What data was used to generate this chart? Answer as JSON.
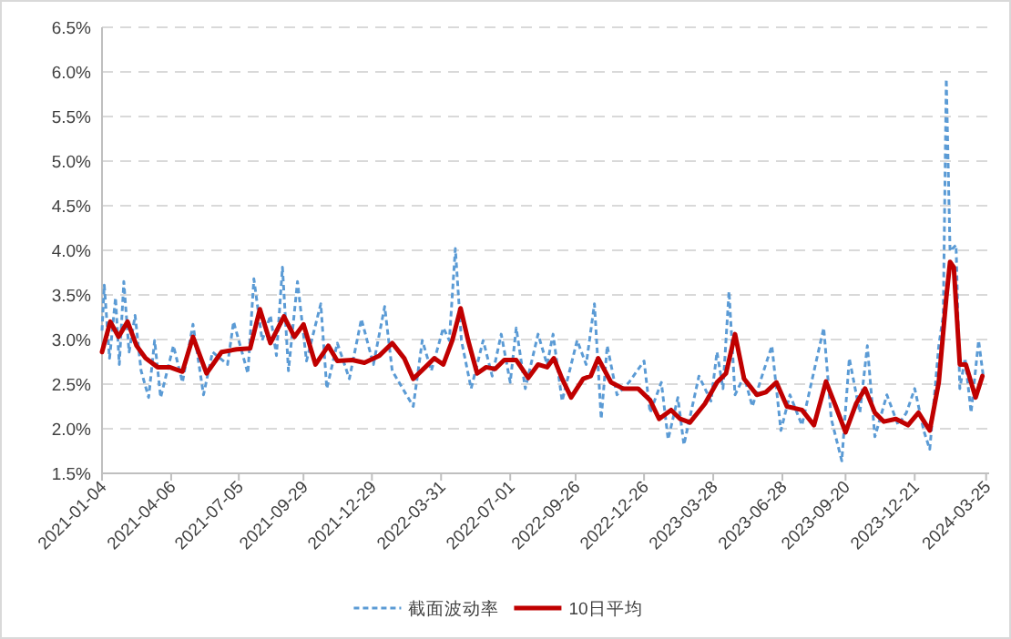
{
  "chart_data": {
    "type": "line",
    "xlim": [
      "2021-01-04",
      "2024-03-29"
    ],
    "xticks": [
      "2021-01-04",
      "2021-04-06",
      "2021-07-05",
      "2021-09-29",
      "2021-12-29",
      "2022-03-31",
      "2022-07-01",
      "2022-09-26",
      "2022-12-26",
      "2023-03-28",
      "2023-06-28",
      "2023-09-20",
      "2023-12-21",
      "2024-03-25"
    ],
    "ylim": [
      1.5,
      6.5
    ],
    "yticks": [
      {
        "value": 1.5,
        "label": "1.5%"
      },
      {
        "value": 2.0,
        "label": "2.0%"
      },
      {
        "value": 2.5,
        "label": "2.5%"
      },
      {
        "value": 3.0,
        "label": "3.0%"
      },
      {
        "value": 3.5,
        "label": "3.5%"
      },
      {
        "value": 4.0,
        "label": "4.0%"
      },
      {
        "value": 4.5,
        "label": "4.5%"
      },
      {
        "value": 5.0,
        "label": "5.0%"
      },
      {
        "value": 5.5,
        "label": "5.5%"
      },
      {
        "value": 6.0,
        "label": "6.0%"
      },
      {
        "value": 6.5,
        "label": "6.5%"
      }
    ],
    "grid": "y",
    "legend": "bottom",
    "series": [
      {
        "name": "截面波动率",
        "color": "#5b9bd5",
        "line_style": "dashed",
        "x": [
          "2021-01-04",
          "2021-01-07",
          "2021-01-14",
          "2021-01-22",
          "2021-01-27",
          "2021-02-02",
          "2021-02-09",
          "2021-02-17",
          "2021-02-25",
          "2021-03-07",
          "2021-03-15",
          "2021-03-23",
          "2021-04-09",
          "2021-04-21",
          "2021-05-05",
          "2021-05-19",
          "2021-05-31",
          "2021-06-20",
          "2021-06-28",
          "2021-07-17",
          "2021-07-25",
          "2021-08-05",
          "2021-08-16",
          "2021-08-24",
          "2021-09-01",
          "2021-09-09",
          "2021-09-21",
          "2021-10-03",
          "2021-10-22",
          "2021-10-30",
          "2021-11-13",
          "2021-11-29",
          "2021-12-15",
          "2021-12-31",
          "2022-01-15",
          "2022-01-25",
          "2022-02-22",
          "2022-03-06",
          "2022-03-18",
          "2022-04-03",
          "2022-04-11",
          "2022-04-19",
          "2022-04-27",
          "2022-05-10",
          "2022-05-26",
          "2022-06-07",
          "2022-06-19",
          "2022-07-01",
          "2022-07-09",
          "2022-07-21",
          "2022-08-07",
          "2022-08-19",
          "2022-08-27",
          "2022-09-08",
          "2022-09-28",
          "2022-10-10",
          "2022-10-21",
          "2022-10-30",
          "2022-11-07",
          "2022-11-20",
          "2022-12-06",
          "2022-12-26",
          "2023-01-03",
          "2023-01-18",
          "2023-01-27",
          "2023-02-09",
          "2023-02-17",
          "2023-03-09",
          "2023-03-25",
          "2023-04-02",
          "2023-04-10",
          "2023-04-18",
          "2023-04-26",
          "2023-05-08",
          "2023-05-19",
          "2023-06-02",
          "2023-06-14",
          "2023-06-26",
          "2023-07-08",
          "2023-07-24",
          "2023-08-11",
          "2023-08-22",
          "2023-09-01",
          "2023-09-15",
          "2023-09-25",
          "2023-10-09",
          "2023-10-19",
          "2023-10-29",
          "2023-11-14",
          "2023-11-29",
          "2023-12-10",
          "2023-12-21",
          "2024-01-02",
          "2024-01-10",
          "2024-01-22",
          "2024-01-28",
          "2024-02-01",
          "2024-02-06",
          "2024-02-14",
          "2024-02-19",
          "2024-02-26",
          "2024-03-05",
          "2024-03-15",
          "2024-03-21"
        ],
        "values": [
          3.1,
          3.61,
          2.79,
          3.47,
          2.72,
          3.65,
          2.86,
          3.27,
          2.65,
          2.35,
          2.99,
          2.35,
          2.93,
          2.52,
          3.17,
          2.38,
          2.86,
          2.72,
          3.2,
          2.62,
          3.68,
          2.99,
          3.27,
          2.82,
          3.81,
          2.65,
          3.65,
          2.76,
          3.4,
          2.45,
          2.96,
          2.56,
          3.23,
          2.72,
          3.37,
          2.65,
          2.25,
          2.99,
          2.65,
          3.13,
          2.99,
          4.02,
          2.99,
          2.45,
          2.99,
          2.59,
          3.06,
          2.52,
          3.13,
          2.45,
          3.06,
          2.72,
          3.06,
          2.31,
          2.99,
          2.72,
          3.4,
          2.11,
          2.93,
          2.38,
          2.52,
          2.76,
          2.18,
          2.52,
          1.88,
          2.35,
          1.82,
          2.59,
          2.31,
          2.86,
          2.45,
          3.54,
          2.38,
          2.59,
          2.25,
          2.62,
          2.93,
          1.98,
          2.38,
          2.04,
          2.72,
          3.13,
          2.11,
          1.64,
          2.79,
          2.18,
          2.93,
          1.91,
          2.38,
          2.04,
          2.18,
          2.45,
          1.98,
          1.77,
          2.93,
          3.27,
          5.92,
          3.99,
          4.06,
          2.45,
          2.79,
          2.18,
          2.99,
          2.6
        ]
      },
      {
        "name": "10日平均",
        "color": "#c00000",
        "line_style": "solid",
        "x": [
          "2021-01-04",
          "2021-01-15",
          "2021-01-26",
          "2021-02-07",
          "2021-02-19",
          "2021-03-03",
          "2021-03-19",
          "2021-04-04",
          "2021-04-21",
          "2021-05-05",
          "2021-05-23",
          "2021-06-12",
          "2021-07-02",
          "2021-07-20",
          "2021-08-02",
          "2021-08-16",
          "2021-09-03",
          "2021-09-17",
          "2021-09-29",
          "2021-10-15",
          "2021-11-01",
          "2021-11-13",
          "2021-12-03",
          "2021-12-19",
          "2022-01-08",
          "2022-01-25",
          "2022-02-10",
          "2022-02-22",
          "2022-03-10",
          "2022-03-22",
          "2022-04-03",
          "2022-04-15",
          "2022-04-26",
          "2022-05-06",
          "2022-05-18",
          "2022-05-30",
          "2022-06-11",
          "2022-06-23",
          "2022-07-09",
          "2022-07-25",
          "2022-08-07",
          "2022-08-19",
          "2022-08-28",
          "2022-09-08",
          "2022-09-20",
          "2022-10-06",
          "2022-10-16",
          "2022-10-26",
          "2022-11-12",
          "2022-11-28",
          "2022-12-18",
          "2023-01-03",
          "2023-01-15",
          "2023-01-31",
          "2023-02-12",
          "2023-02-25",
          "2023-03-17",
          "2023-04-02",
          "2023-04-14",
          "2023-04-26",
          "2023-05-08",
          "2023-05-25",
          "2023-06-06",
          "2023-06-20",
          "2023-07-04",
          "2023-07-24",
          "2023-08-09",
          "2023-08-25",
          "2023-09-07",
          "2023-09-20",
          "2023-10-04",
          "2023-10-16",
          "2023-10-29",
          "2023-11-10",
          "2023-11-26",
          "2023-12-12",
          "2023-12-26",
          "2024-01-10",
          "2024-01-22",
          "2024-02-01",
          "2024-02-06",
          "2024-02-11",
          "2024-02-19",
          "2024-02-27",
          "2024-03-11",
          "2024-03-20"
        ],
        "values": [
          2.86,
          3.2,
          3.03,
          3.2,
          2.93,
          2.79,
          2.69,
          2.69,
          2.64,
          3.03,
          2.62,
          2.86,
          2.89,
          2.9,
          3.34,
          2.96,
          3.26,
          3.03,
          3.17,
          2.72,
          2.93,
          2.76,
          2.77,
          2.74,
          2.82,
          2.96,
          2.79,
          2.56,
          2.69,
          2.79,
          2.72,
          2.99,
          3.35,
          2.99,
          2.62,
          2.69,
          2.67,
          2.77,
          2.77,
          2.57,
          2.72,
          2.69,
          2.79,
          2.56,
          2.35,
          2.56,
          2.59,
          2.79,
          2.52,
          2.45,
          2.45,
          2.32,
          2.11,
          2.21,
          2.11,
          2.07,
          2.28,
          2.52,
          2.62,
          3.06,
          2.56,
          2.38,
          2.41,
          2.52,
          2.25,
          2.21,
          2.04,
          2.53,
          2.25,
          1.96,
          2.28,
          2.45,
          2.18,
          2.08,
          2.11,
          2.04,
          2.18,
          1.98,
          2.52,
          3.47,
          3.87,
          3.81,
          2.72,
          2.72,
          2.35,
          2.59
        ]
      }
    ]
  }
}
